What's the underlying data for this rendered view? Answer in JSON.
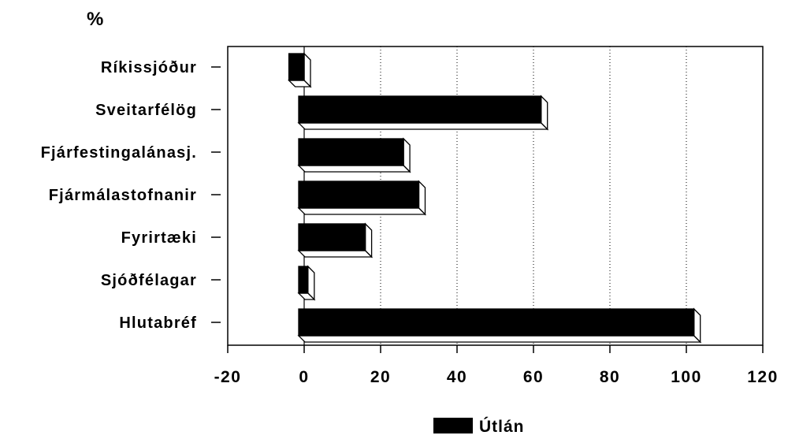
{
  "chart_data": {
    "type": "bar",
    "orientation": "horizontal",
    "unit_label": "%",
    "categories": [
      "Ríkissjóður",
      "Sveitarfélög",
      "Fjárfestingalánasj.",
      "Fjármálastofnanir",
      "Fyrirtæki",
      "Sjóðfélagar",
      "Hlutabréf"
    ],
    "series": [
      {
        "name": "Útlán",
        "values": [
          -4,
          62,
          26,
          30,
          16,
          1,
          102
        ]
      }
    ],
    "xlim": [
      -20,
      120
    ],
    "x_ticks": [
      -20,
      0,
      20,
      40,
      60,
      80,
      100,
      120
    ],
    "x_tick_labels": [
      "-20",
      "0",
      "20",
      "40",
      "60",
      "80",
      "100",
      "120"
    ],
    "grid": "vertical-dotted",
    "bar_style": "3d",
    "legend": {
      "position": "bottom-center",
      "items": [
        "Útlán"
      ]
    },
    "colors": {
      "bar": "#000000",
      "background": "#ffffff"
    }
  }
}
